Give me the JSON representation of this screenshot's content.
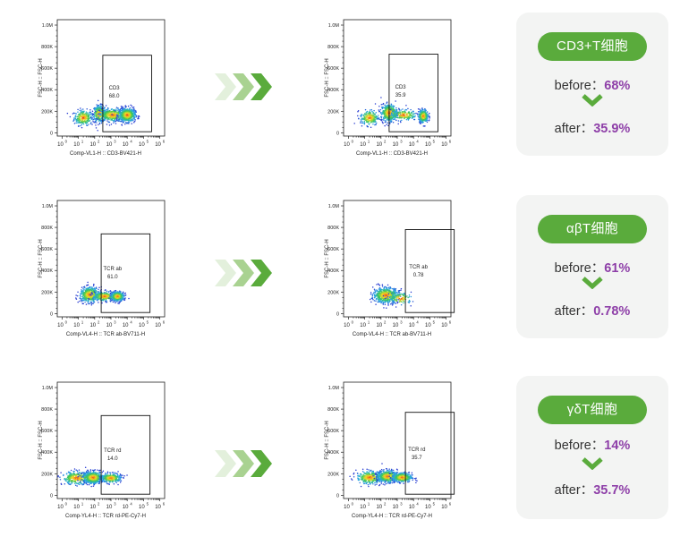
{
  "chart_data": [
    {
      "type": "scatter",
      "ylabel": "FSC-H :: FSC-H",
      "xlabel": "Comp-VL1-H :: CD3-BV421-H",
      "gate": {
        "name": "CD3",
        "value": "68.0"
      },
      "yticks": [
        "0",
        "200K",
        "400K",
        "600K",
        "800K",
        "1.0M"
      ],
      "xticks": [
        "0",
        "1",
        "2",
        "3",
        "4",
        "5",
        "6"
      ],
      "populations": [
        {
          "x": 1.3,
          "y": 140,
          "sx": 0.28,
          "sy": 35,
          "n": 260
        },
        {
          "x": 2.3,
          "y": 175,
          "sx": 0.2,
          "sy": 38,
          "n": 340
        },
        {
          "x": 3.1,
          "y": 165,
          "sx": 0.4,
          "sy": 30,
          "n": 420
        },
        {
          "x": 4.0,
          "y": 165,
          "sx": 0.25,
          "sy": 32,
          "n": 520
        }
      ]
    },
    {
      "type": "scatter",
      "ylabel": "FSC-H :: FSC-H",
      "xlabel": "Comp-VL1-H :: CD3-BV421-H",
      "gate": {
        "name": "CD3",
        "value": "35.9"
      },
      "yticks": [
        "0",
        "200K",
        "400K",
        "600K",
        "800K",
        "1.0M"
      ],
      "xticks": [
        "0",
        "1",
        "2",
        "3",
        "4",
        "5",
        "6"
      ],
      "populations": [
        {
          "x": 1.3,
          "y": 140,
          "sx": 0.28,
          "sy": 35,
          "n": 220
        },
        {
          "x": 2.5,
          "y": 185,
          "sx": 0.25,
          "sy": 40,
          "n": 480
        },
        {
          "x": 3.4,
          "y": 165,
          "sx": 0.4,
          "sy": 25,
          "n": 180
        },
        {
          "x": 4.6,
          "y": 155,
          "sx": 0.15,
          "sy": 30,
          "n": 300
        }
      ]
    },
    {
      "type": "scatter",
      "ylabel": "FSC-H :: FSC-H",
      "xlabel": "Comp-VL4-H :: TCR ab-BV711-H",
      "gate": {
        "name": "TCR ab",
        "value": "61.0"
      },
      "yticks": [
        "0",
        "200K",
        "400K",
        "600K",
        "800K",
        "1.0M"
      ],
      "xticks": [
        "0",
        "1",
        "2",
        "3",
        "4",
        "5",
        "6"
      ],
      "populations": [
        {
          "x": 1.7,
          "y": 175,
          "sx": 0.3,
          "sy": 35,
          "n": 480
        },
        {
          "x": 2.6,
          "y": 160,
          "sx": 0.35,
          "sy": 22,
          "n": 300
        },
        {
          "x": 3.4,
          "y": 160,
          "sx": 0.2,
          "sy": 22,
          "n": 380
        }
      ]
    },
    {
      "type": "scatter",
      "ylabel": "FSC-H :: FSC-H",
      "xlabel": "Comp-VL4-H :: TCR ab-BV711-H",
      "gate": {
        "name": "TCR ab",
        "value": "0.78"
      },
      "yticks": [
        "0",
        "200K",
        "400K",
        "600K",
        "800K",
        "1.0M"
      ],
      "xticks": [
        "0",
        "1",
        "2",
        "3",
        "4",
        "5",
        "6"
      ],
      "populations": [
        {
          "x": 2.3,
          "y": 170,
          "sx": 0.38,
          "sy": 35,
          "n": 620
        },
        {
          "x": 3.2,
          "y": 140,
          "sx": 0.35,
          "sy": 28,
          "n": 110
        }
      ]
    },
    {
      "type": "scatter",
      "ylabel": "FSC-H :: FSC-H",
      "xlabel": "Comp-YL4-H :: TCR rd-PE-Cy7-H",
      "gate": {
        "name": "TCR rd",
        "value": "14.0"
      },
      "yticks": [
        "0",
        "200K",
        "400K",
        "600K",
        "800K",
        "1.0M"
      ],
      "xticks": [
        "0",
        "1",
        "2",
        "3",
        "4",
        "5",
        "6"
      ],
      "populations": [
        {
          "x": 0.9,
          "y": 160,
          "sx": 0.45,
          "sy": 30,
          "n": 350
        },
        {
          "x": 1.9,
          "y": 165,
          "sx": 0.3,
          "sy": 28,
          "n": 520
        },
        {
          "x": 3.0,
          "y": 160,
          "sx": 0.3,
          "sy": 22,
          "n": 300
        }
      ]
    },
    {
      "type": "scatter",
      "ylabel": "FSC-H :: FSC-H",
      "xlabel": "Comp-YL4-H :: TCR rd-PE-Cy7-H",
      "gate": {
        "name": "TCR rd",
        "value": "35.7"
      },
      "yticks": [
        "0",
        "200K",
        "400K",
        "600K",
        "800K",
        "1.0M"
      ],
      "xticks": [
        "0",
        "1",
        "2",
        "3",
        "4",
        "5",
        "6"
      ],
      "populations": [
        {
          "x": 1.3,
          "y": 165,
          "sx": 0.4,
          "sy": 30,
          "n": 350
        },
        {
          "x": 2.4,
          "y": 175,
          "sx": 0.3,
          "sy": 28,
          "n": 480
        },
        {
          "x": 3.3,
          "y": 165,
          "sx": 0.3,
          "sy": 22,
          "n": 420
        }
      ]
    }
  ],
  "summaries": [
    {
      "title": "CD3+T细胞",
      "before_label": "before：",
      "before_value": "68%",
      "after_label": "after：",
      "after_value": "35.9%"
    },
    {
      "title": "αβT细胞",
      "before_label": "before：",
      "before_value": "61%",
      "after_label": "after：",
      "after_value": "0.78%"
    },
    {
      "title": "γδT细胞",
      "before_label": "before：",
      "before_value": "14%",
      "after_label": "after：",
      "after_value": "35.7%"
    }
  ],
  "colors": {
    "accent": "#5aab3c",
    "highlight": "#8e3fa8",
    "card_bg": "#f3f4f3"
  },
  "icons": {
    "arrows": "triple-chevron-right-icon",
    "down": "chevron-down-icon"
  }
}
